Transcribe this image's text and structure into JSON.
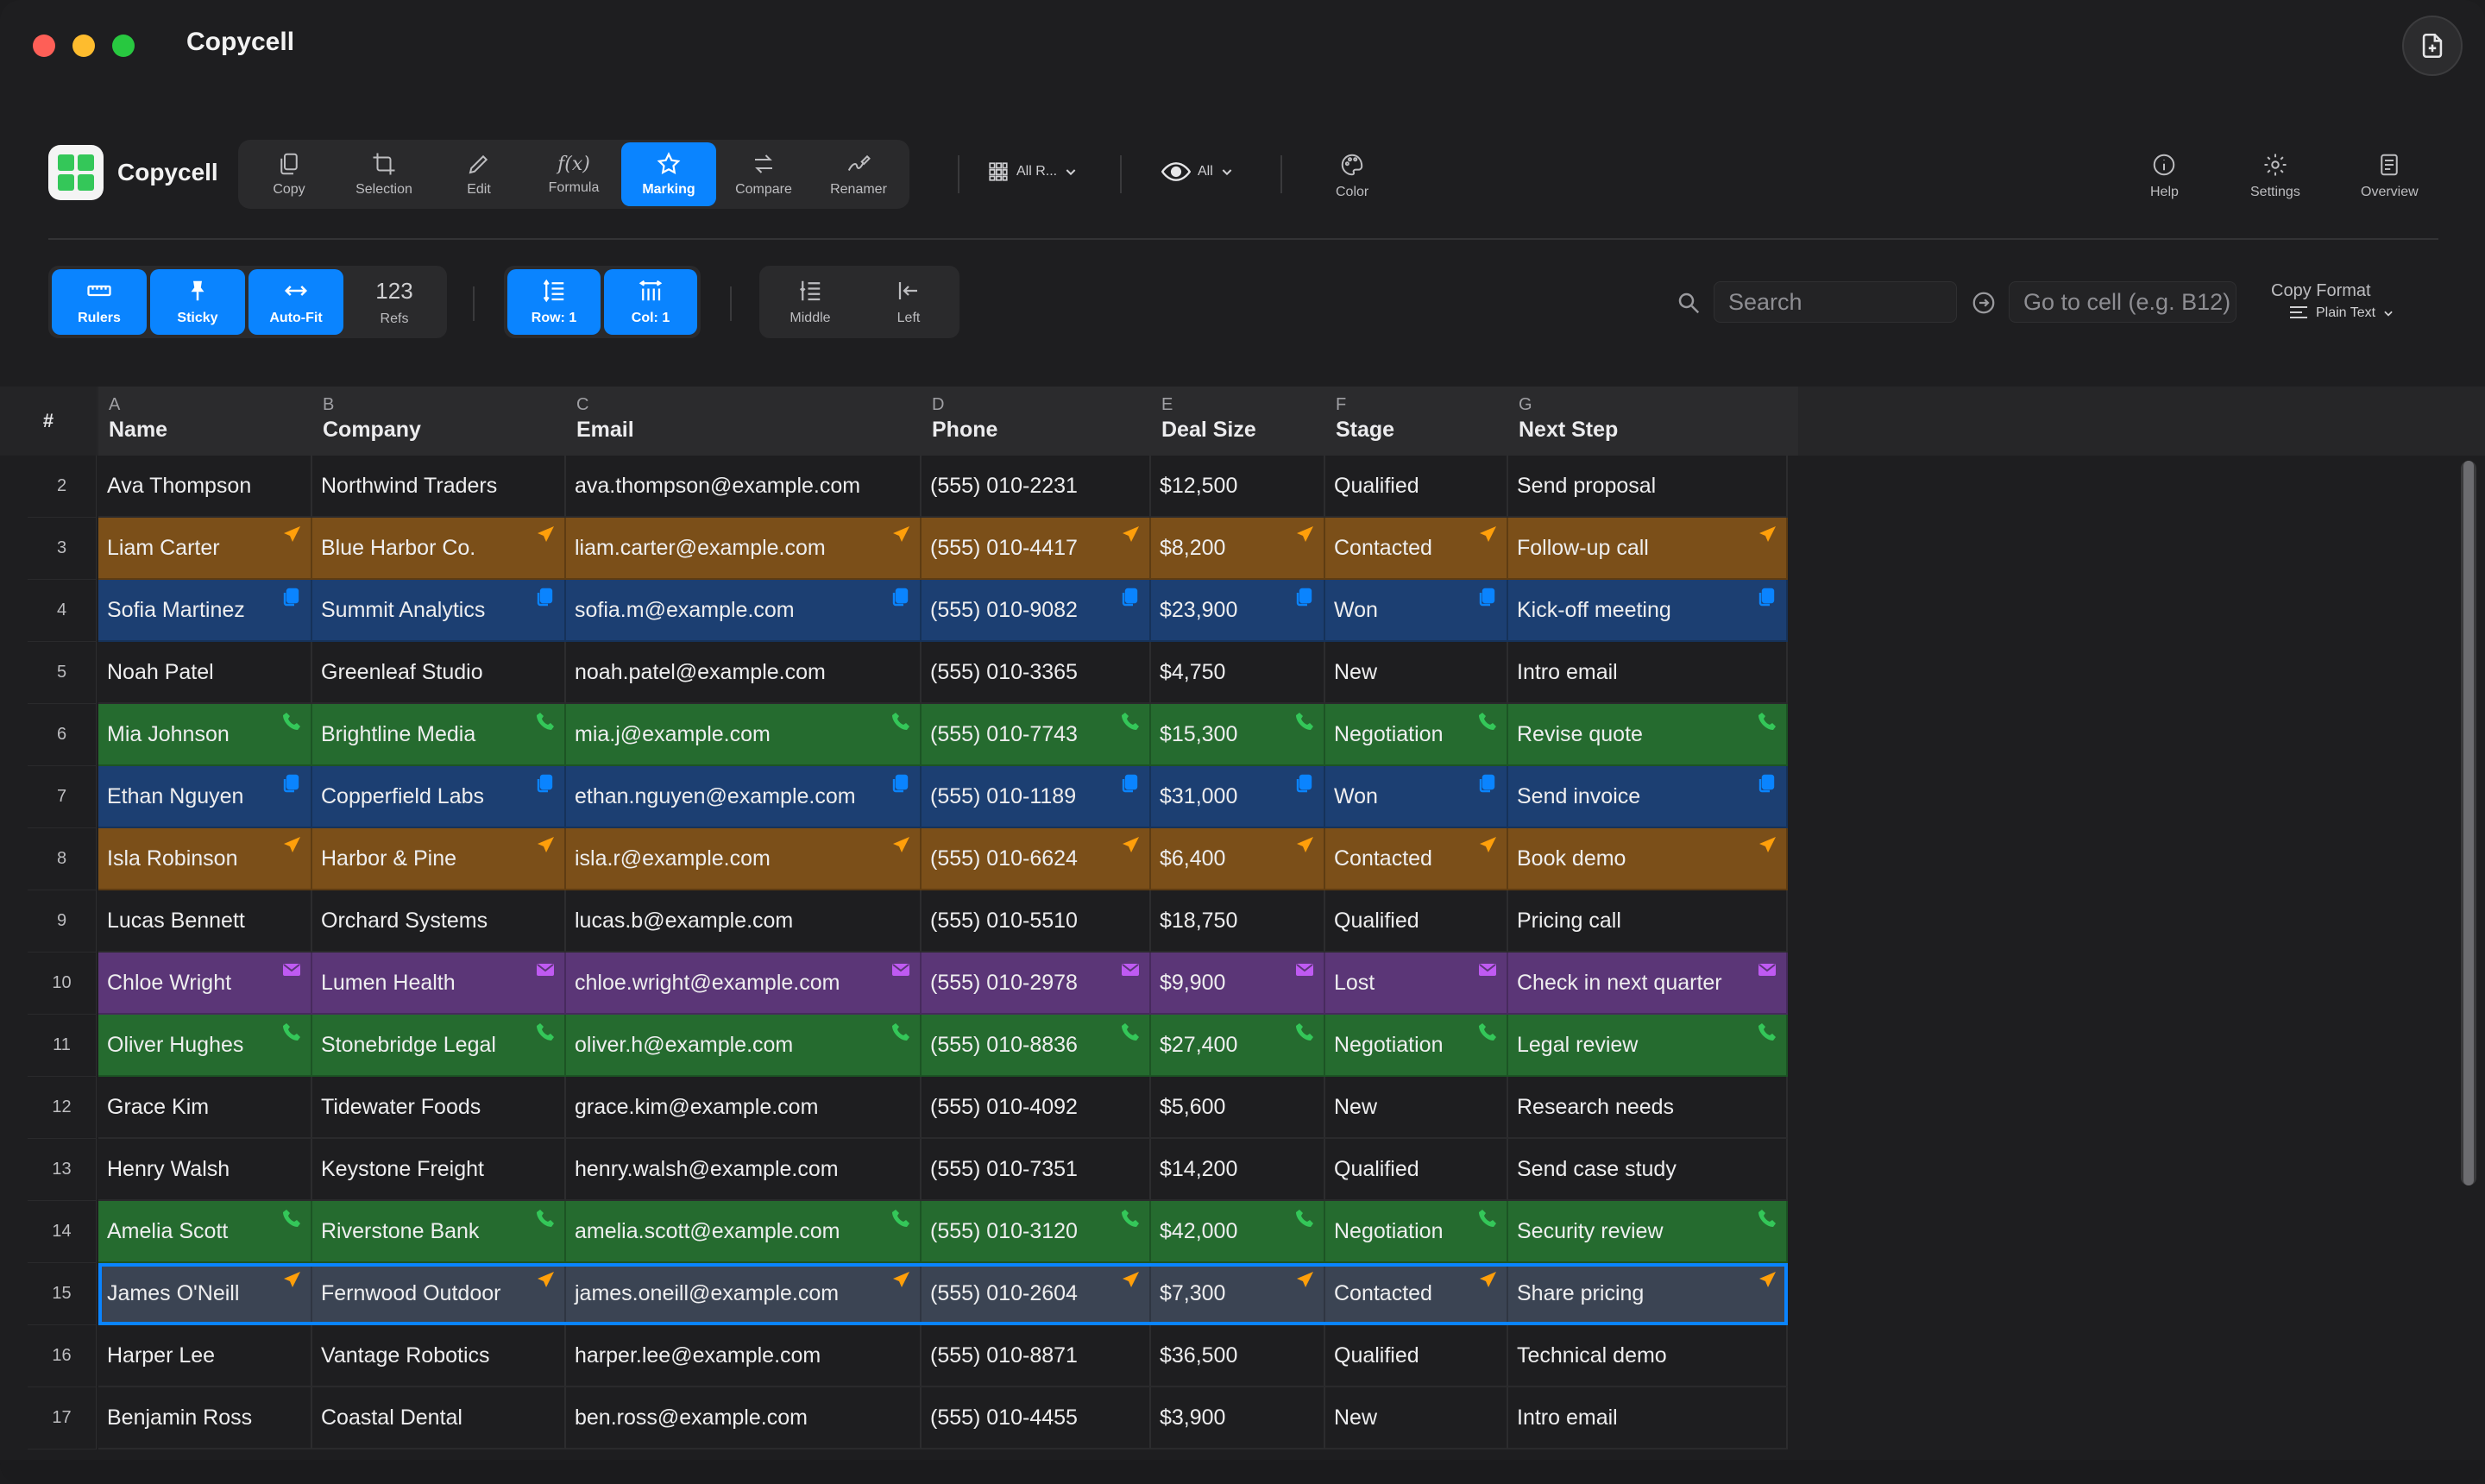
{
  "window": {
    "title": "Copycell"
  },
  "app": {
    "name": "Copycell"
  },
  "toolbar": {
    "tools": [
      {
        "label": "Copy",
        "icon": "copy-icon",
        "active": false
      },
      {
        "label": "Selection",
        "icon": "crop-icon",
        "active": false
      },
      {
        "label": "Edit",
        "icon": "pencil-icon",
        "active": false
      },
      {
        "label": "Formula",
        "icon": "function-icon",
        "active": false
      },
      {
        "label": "Marking",
        "icon": "star-icon",
        "active": true
      },
      {
        "label": "Compare",
        "icon": "arrows-icon",
        "active": false
      },
      {
        "label": "Renamer",
        "icon": "rename-icon",
        "active": false
      }
    ],
    "rows_filter": "All R...",
    "visibility_filter": "All",
    "color_label": "Color",
    "help_label": "Help",
    "settings_label": "Settings",
    "overview_label": "Overview",
    "formula_glyph": "f(x)"
  },
  "bar2": {
    "rulers": "Rulers",
    "sticky": "Sticky",
    "autofit": "Auto-Fit",
    "refs_num": "123",
    "refs": "Refs",
    "row": "Row: 1",
    "col": "Col: 1",
    "middle": "Middle",
    "left": "Left",
    "search_placeholder": "Search",
    "goto_placeholder": "Go to cell (e.g. B12)",
    "copy_format_label": "Copy Format",
    "copy_format_value": "Plain Text"
  },
  "grid": {
    "corner": "#",
    "columns": [
      {
        "letter": "A",
        "name": "Name"
      },
      {
        "letter": "B",
        "name": "Company"
      },
      {
        "letter": "C",
        "name": "Email"
      },
      {
        "letter": "D",
        "name": "Phone"
      },
      {
        "letter": "E",
        "name": "Deal Size"
      },
      {
        "letter": "F",
        "name": "Stage"
      },
      {
        "letter": "G",
        "name": "Next Step"
      }
    ],
    "rows": [
      {
        "num": "2",
        "mark": "none",
        "cells": [
          "Ava Thompson",
          "Northwind Traders",
          "ava.thompson@example.com",
          "(555) 010-2231",
          "$12,500",
          "Qualified",
          "Send proposal"
        ]
      },
      {
        "num": "3",
        "mark": "orange",
        "cells": [
          "Liam Carter",
          "Blue Harbor Co.",
          "liam.carter@example.com",
          "(555) 010-4417",
          "$8,200",
          "Contacted",
          "Follow-up call"
        ]
      },
      {
        "num": "4",
        "mark": "blue",
        "cells": [
          "Sofia Martinez",
          "Summit Analytics",
          "sofia.m@example.com",
          "(555) 010-9082",
          "$23,900",
          "Won",
          "Kick-off meeting"
        ]
      },
      {
        "num": "5",
        "mark": "none",
        "cells": [
          "Noah Patel",
          "Greenleaf Studio",
          "noah.patel@example.com",
          "(555) 010-3365",
          "$4,750",
          "New",
          "Intro email"
        ]
      },
      {
        "num": "6",
        "mark": "green",
        "cells": [
          "Mia Johnson",
          "Brightline Media",
          "mia.j@example.com",
          "(555) 010-7743",
          "$15,300",
          "Negotiation",
          "Revise quote"
        ]
      },
      {
        "num": "7",
        "mark": "blue",
        "cells": [
          "Ethan Nguyen",
          "Copperfield Labs",
          "ethan.nguyen@example.com",
          "(555) 010-1189",
          "$31,000",
          "Won",
          "Send invoice"
        ]
      },
      {
        "num": "8",
        "mark": "orange",
        "cells": [
          "Isla Robinson",
          "Harbor & Pine",
          "isla.r@example.com",
          "(555) 010-6624",
          "$6,400",
          "Contacted",
          "Book demo"
        ]
      },
      {
        "num": "9",
        "mark": "none",
        "cells": [
          "Lucas Bennett",
          "Orchard Systems",
          "lucas.b@example.com",
          "(555) 010-5510",
          "$18,750",
          "Qualified",
          "Pricing call"
        ]
      },
      {
        "num": "10",
        "mark": "purple",
        "cells": [
          "Chloe Wright",
          "Lumen Health",
          "chloe.wright@example.com",
          "(555) 010-2978",
          "$9,900",
          "Lost",
          "Check in next quarter"
        ]
      },
      {
        "num": "11",
        "mark": "green",
        "cells": [
          "Oliver Hughes",
          "Stonebridge Legal",
          "oliver.h@example.com",
          "(555) 010-8836",
          "$27,400",
          "Negotiation",
          "Legal review"
        ]
      },
      {
        "num": "12",
        "mark": "none",
        "cells": [
          "Grace Kim",
          "Tidewater Foods",
          "grace.kim@example.com",
          "(555) 010-4092",
          "$5,600",
          "New",
          "Research needs"
        ]
      },
      {
        "num": "13",
        "mark": "none",
        "cells": [
          "Henry Walsh",
          "Keystone Freight",
          "henry.walsh@example.com",
          "(555) 010-7351",
          "$14,200",
          "Qualified",
          "Send case study"
        ]
      },
      {
        "num": "14",
        "mark": "green",
        "cells": [
          "Amelia Scott",
          "Riverstone Bank",
          "amelia.scott@example.com",
          "(555) 010-3120",
          "$42,000",
          "Negotiation",
          "Security review"
        ]
      },
      {
        "num": "15",
        "mark": "selected",
        "cells": [
          "James O'Neill",
          "Fernwood Outdoor",
          "james.oneill@example.com",
          "(555) 010-2604",
          "$7,300",
          "Contacted",
          "Share pricing"
        ]
      },
      {
        "num": "16",
        "mark": "none",
        "cells": [
          "Harper Lee",
          "Vantage Robotics",
          "harper.lee@example.com",
          "(555) 010-8871",
          "$36,500",
          "Qualified",
          "Technical demo"
        ]
      },
      {
        "num": "17",
        "mark": "none",
        "cells": [
          "Benjamin Ross",
          "Coastal Dental",
          "ben.ross@example.com",
          "(555) 010-4455",
          "$3,900",
          "New",
          "Intro email"
        ]
      }
    ]
  },
  "markers": {
    "orange": {
      "icon": "send-icon",
      "color": "#ff9f0a"
    },
    "blue": {
      "icon": "document-icon",
      "color": "#0a84ff"
    },
    "green": {
      "icon": "phone-icon",
      "color": "#34c759"
    },
    "purple": {
      "icon": "envelope-icon",
      "color": "#bf5af2"
    },
    "selected": {
      "icon": "send-icon",
      "color": "#ff9f0a"
    }
  }
}
